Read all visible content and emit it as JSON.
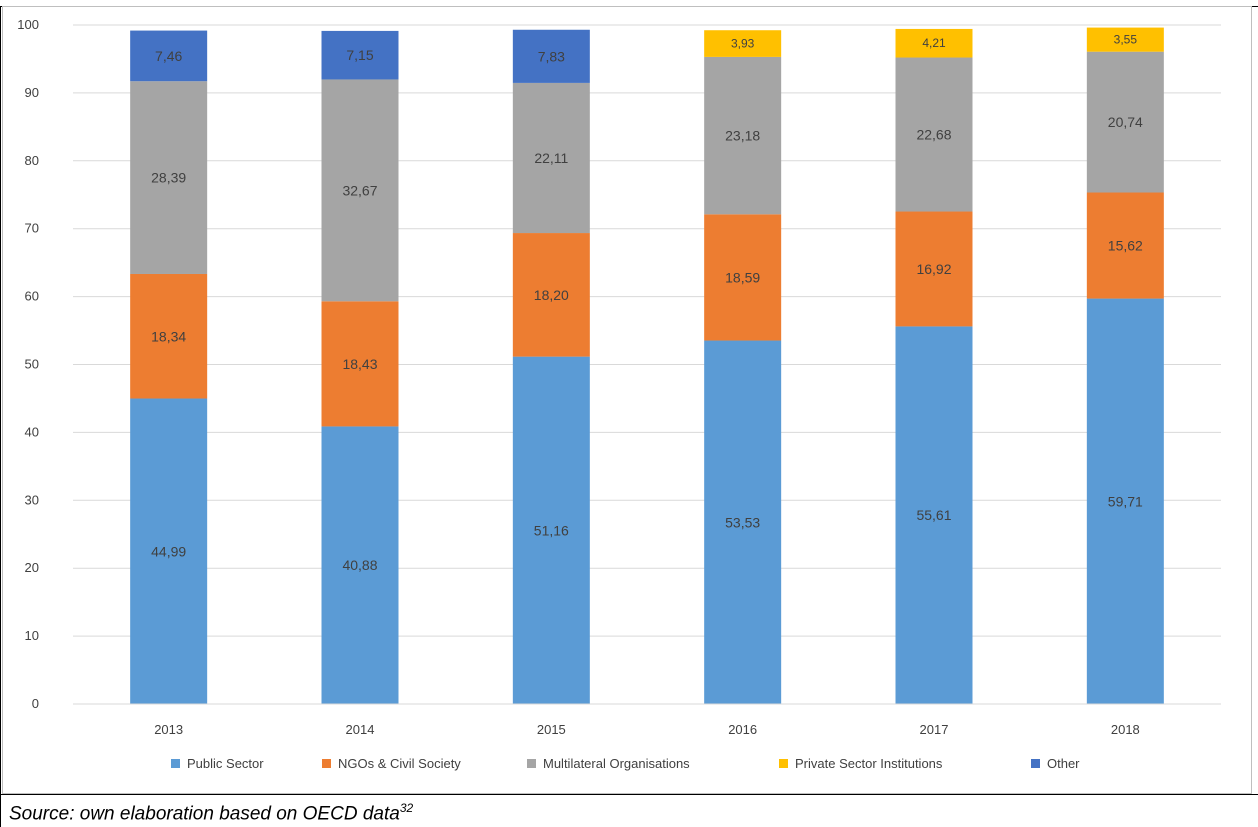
{
  "caption": {
    "source_text": "Source: own elaboration based on OECD data",
    "source_ref": "32"
  },
  "chart_data": {
    "type": "bar",
    "stacked": true,
    "categories": [
      "2013",
      "2014",
      "2015",
      "2016",
      "2017",
      "2018"
    ],
    "series": [
      {
        "name": "Public Sector",
        "color": "#5b9bd5",
        "values": [
          44.99,
          40.88,
          51.16,
          53.53,
          55.61,
          59.71
        ],
        "labels": [
          "44,99",
          "40,88",
          "51,16",
          "53,53",
          "55,61",
          "59,71"
        ]
      },
      {
        "name": "NGOs & Civil Society",
        "color": "#ed7d31",
        "values": [
          18.34,
          18.43,
          18.2,
          18.59,
          16.92,
          15.62
        ],
        "labels": [
          "18,34",
          "18,43",
          "18,20",
          "18,59",
          "16,92",
          "15,62"
        ]
      },
      {
        "name": "Multilateral Organisations",
        "color": "#a5a5a5",
        "values": [
          28.39,
          32.67,
          22.11,
          23.18,
          22.68,
          20.74
        ],
        "labels": [
          "28,39",
          "32,67",
          "22,11",
          "23,18",
          "22,68",
          "20,74"
        ]
      },
      {
        "name": "Private Sector Institutions",
        "color": "#ffc000",
        "values": [
          0,
          0,
          0,
          3.93,
          4.21,
          3.55
        ],
        "labels": [
          "",
          "",
          "",
          "3,93",
          "4,21",
          "3,55"
        ]
      },
      {
        "name": "Other",
        "color": "#4472c4",
        "values": [
          7.46,
          7.15,
          7.83,
          0,
          0,
          0
        ],
        "labels": [
          "7,46",
          "7,15",
          "7,83",
          "",
          "",
          ""
        ]
      }
    ],
    "ylim": [
      0,
      100
    ],
    "yticks": [
      "0",
      "10",
      "20",
      "30",
      "40",
      "50",
      "60",
      "70",
      "80",
      "90",
      "100"
    ],
    "grid": true,
    "legend_position": "bottom",
    "label_color": "#404040",
    "grid_color": "#d9d9d9",
    "axis_color": "#595959"
  }
}
